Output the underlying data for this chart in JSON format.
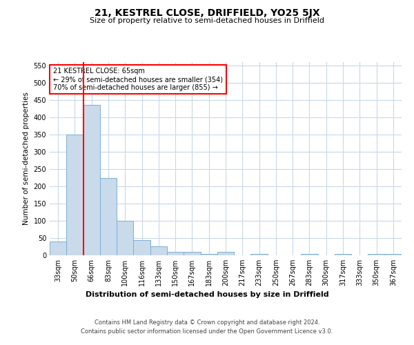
{
  "title": "21, KESTREL CLOSE, DRIFFIELD, YO25 5JX",
  "subtitle": "Size of property relative to semi-detached houses in Driffield",
  "xlabel": "Distribution of semi-detached houses by size in Driffield",
  "ylabel": "Number of semi-detached properties",
  "property_label": "21 KESTREL CLOSE: 65sqm",
  "pct_smaller": 29,
  "count_smaller": 354,
  "pct_larger": 70,
  "count_larger": 855,
  "bar_categories": [
    "33sqm",
    "50sqm",
    "66sqm",
    "83sqm",
    "100sqm",
    "116sqm",
    "133sqm",
    "150sqm",
    "167sqm",
    "183sqm",
    "200sqm",
    "217sqm",
    "233sqm",
    "250sqm",
    "267sqm",
    "283sqm",
    "300sqm",
    "317sqm",
    "333sqm",
    "350sqm",
    "367sqm"
  ],
  "bar_values": [
    40,
    350,
    435,
    225,
    100,
    45,
    27,
    10,
    10,
    5,
    10,
    0,
    5,
    0,
    0,
    5,
    0,
    5,
    0,
    5,
    5
  ],
  "bar_color": "#c9daea",
  "bar_edge_color": "#7bafd4",
  "vline_color": "#ff0000",
  "vline_x_index": 1.5,
  "annotation_box_color": "#ff0000",
  "ylim": [
    0,
    560
  ],
  "yticks": [
    0,
    50,
    100,
    150,
    200,
    250,
    300,
    350,
    400,
    450,
    500,
    550
  ],
  "background_color": "#ffffff",
  "grid_color": "#c8d8e8",
  "title_fontsize": 10,
  "subtitle_fontsize": 8,
  "ylabel_fontsize": 7.5,
  "xlabel_fontsize": 8,
  "tick_fontsize": 7,
  "annotation_fontsize": 7,
  "footer_line1": "Contains HM Land Registry data © Crown copyright and database right 2024.",
  "footer_line2": "Contains public sector information licensed under the Open Government Licence v3.0.",
  "footer_fontsize": 6
}
